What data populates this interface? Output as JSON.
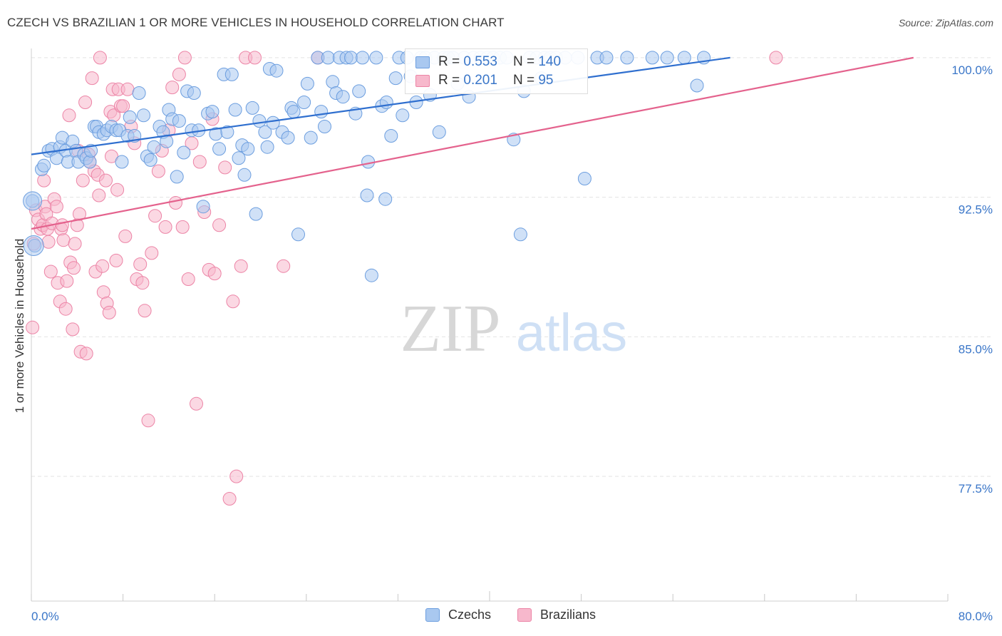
{
  "title": "CZECH VS BRAZILIAN 1 OR MORE VEHICLES IN HOUSEHOLD CORRELATION CHART",
  "source": "Source: ZipAtlas.com",
  "watermark": {
    "zip": "ZIP",
    "atlas": "atlas"
  },
  "legend": {
    "czechs": {
      "r_label": "R =",
      "r_value": "0.553",
      "n_label": "N =",
      "n_value": "140"
    },
    "brazilians": {
      "r_label": "R =",
      "r_value": "0.201",
      "n_label": "N =",
      "n_value": "95"
    }
  },
  "bottom_legend": {
    "czechs": "Czechs",
    "brazilians": "Brazilians"
  },
  "colors": {
    "czech_fill": "#a9c8f0",
    "czech_stroke": "#6c9edf",
    "czech_line": "#2f6fcf",
    "brazil_fill": "#f7b8cc",
    "brazil_stroke": "#ec84a6",
    "brazil_line": "#e4628d",
    "axis_label": "#3a76c8",
    "grid": "#e3e3e3"
  },
  "chart_data": {
    "type": "scatter",
    "title": "CZECH VS BRAZILIAN 1 OR MORE VEHICLES IN HOUSEHOLD CORRELATION CHART",
    "xlabel": "",
    "ylabel": "1 or more Vehicles in Household",
    "xlim": [
      0,
      80
    ],
    "ylim": [
      70.8,
      100.8
    ],
    "x_tick_labels": [
      "0.0%",
      "80.0%"
    ],
    "y_ticks": [
      100.0,
      92.5,
      85.0,
      77.5
    ],
    "y_tick_labels": [
      "100.0%",
      "92.5%",
      "85.0%",
      "77.5%"
    ],
    "grid": true,
    "legend_position": "top-center",
    "series": [
      {
        "name": "Czechs",
        "r": 0.553,
        "n": 140,
        "trend": {
          "x": [
            0,
            61
          ],
          "y": [
            94.8,
            100.0
          ]
        },
        "points": [
          [
            0.1,
            92.3
          ],
          [
            0.3,
            89.9
          ],
          [
            0.9,
            94.0
          ],
          [
            1.1,
            94.2
          ],
          [
            1.5,
            95.0
          ],
          [
            1.8,
            95.1
          ],
          [
            2.2,
            94.6
          ],
          [
            2.5,
            95.2
          ],
          [
            2.7,
            95.7
          ],
          [
            3.0,
            95.0
          ],
          [
            3.2,
            94.4
          ],
          [
            3.6,
            95.5
          ],
          [
            3.9,
            95.0
          ],
          [
            4.1,
            94.4
          ],
          [
            4.6,
            94.8
          ],
          [
            4.8,
            94.6
          ],
          [
            5.1,
            94.4
          ],
          [
            5.2,
            95.0
          ],
          [
            5.5,
            96.3
          ],
          [
            5.7,
            96.3
          ],
          [
            5.9,
            96.0
          ],
          [
            6.3,
            95.9
          ],
          [
            6.6,
            96.1
          ],
          [
            7.0,
            96.3
          ],
          [
            7.4,
            96.1
          ],
          [
            7.7,
            96.1
          ],
          [
            7.9,
            94.4
          ],
          [
            8.4,
            95.8
          ],
          [
            8.6,
            96.8
          ],
          [
            9.0,
            95.8
          ],
          [
            9.4,
            98.1
          ],
          [
            9.8,
            96.9
          ],
          [
            10.1,
            94.7
          ],
          [
            10.4,
            94.5
          ],
          [
            10.7,
            95.2
          ],
          [
            11.2,
            96.3
          ],
          [
            11.5,
            96.0
          ],
          [
            11.8,
            95.5
          ],
          [
            12.0,
            97.2
          ],
          [
            12.3,
            96.7
          ],
          [
            12.7,
            93.6
          ],
          [
            12.9,
            96.6
          ],
          [
            13.3,
            94.9
          ],
          [
            13.6,
            98.2
          ],
          [
            14.0,
            96.1
          ],
          [
            14.2,
            98.1
          ],
          [
            14.6,
            96.1
          ],
          [
            15.0,
            92.0
          ],
          [
            15.4,
            97.0
          ],
          [
            15.8,
            97.1
          ],
          [
            16.1,
            95.9
          ],
          [
            16.4,
            95.1
          ],
          [
            16.8,
            99.1
          ],
          [
            17.1,
            96.0
          ],
          [
            17.5,
            99.1
          ],
          [
            17.8,
            97.2
          ],
          [
            18.1,
            94.6
          ],
          [
            18.4,
            95.3
          ],
          [
            18.6,
            93.7
          ],
          [
            18.9,
            95.1
          ],
          [
            19.3,
            97.3
          ],
          [
            19.6,
            91.6
          ],
          [
            19.9,
            96.6
          ],
          [
            20.4,
            96.0
          ],
          [
            20.6,
            95.2
          ],
          [
            20.8,
            99.4
          ],
          [
            21.1,
            96.5
          ],
          [
            21.4,
            99.3
          ],
          [
            21.9,
            96.0
          ],
          [
            22.4,
            95.7
          ],
          [
            22.7,
            97.3
          ],
          [
            22.9,
            97.1
          ],
          [
            23.3,
            90.5
          ],
          [
            23.8,
            97.6
          ],
          [
            24.1,
            98.6
          ],
          [
            24.4,
            95.7
          ],
          [
            25.0,
            100.0
          ],
          [
            25.3,
            97.1
          ],
          [
            25.6,
            96.3
          ],
          [
            25.9,
            100.0
          ],
          [
            26.3,
            98.7
          ],
          [
            26.6,
            98.1
          ],
          [
            26.9,
            100.0
          ],
          [
            27.2,
            97.9
          ],
          [
            27.5,
            100.0
          ],
          [
            27.9,
            100.0
          ],
          [
            28.3,
            97.0
          ],
          [
            28.6,
            98.2
          ],
          [
            28.9,
            100.0
          ],
          [
            29.3,
            92.6
          ],
          [
            29.4,
            94.4
          ],
          [
            29.7,
            88.3
          ],
          [
            30.1,
            100.0
          ],
          [
            30.6,
            97.4
          ],
          [
            30.9,
            92.4
          ],
          [
            31.0,
            97.6
          ],
          [
            31.4,
            95.8
          ],
          [
            31.8,
            98.9
          ],
          [
            32.1,
            100.0
          ],
          [
            32.4,
            96.9
          ],
          [
            32.8,
            100.0
          ],
          [
            33.1,
            99.0
          ],
          [
            33.6,
            97.6
          ],
          [
            34.0,
            100.0
          ],
          [
            34.4,
            100.0
          ],
          [
            34.8,
            98.0
          ],
          [
            35.2,
            100.0
          ],
          [
            35.6,
            96.0
          ],
          [
            36.0,
            100.0
          ],
          [
            36.4,
            100.0
          ],
          [
            36.8,
            100.0
          ],
          [
            37.2,
            98.6
          ],
          [
            37.8,
            100.0
          ],
          [
            38.2,
            97.9
          ],
          [
            38.6,
            100.0
          ],
          [
            39.2,
            100.0
          ],
          [
            39.8,
            100.0
          ],
          [
            40.3,
            100.0
          ],
          [
            40.9,
            100.0
          ],
          [
            41.5,
            100.0
          ],
          [
            42.1,
            95.6
          ],
          [
            42.7,
            90.5
          ],
          [
            43.0,
            98.2
          ],
          [
            43.5,
            100.0
          ],
          [
            44.1,
            100.0
          ],
          [
            44.5,
            98.9
          ],
          [
            44.8,
            100.0
          ],
          [
            45.3,
            100.0
          ],
          [
            45.8,
            100.0
          ],
          [
            46.6,
            100.0
          ],
          [
            47.7,
            100.0
          ],
          [
            48.3,
            93.5
          ],
          [
            49.4,
            100.0
          ],
          [
            50.2,
            100.0
          ],
          [
            52.0,
            100.0
          ],
          [
            54.2,
            100.0
          ],
          [
            55.5,
            100.0
          ],
          [
            57.0,
            100.0
          ],
          [
            58.1,
            98.5
          ],
          [
            58.7,
            100.0
          ]
        ]
      },
      {
        "name": "Brazilians",
        "r": 0.201,
        "n": 95,
        "trend": {
          "x": [
            0,
            77
          ],
          "y": [
            90.8,
            100.0
          ]
        },
        "points": [
          [
            0.1,
            85.5
          ],
          [
            0.2,
            90.0
          ],
          [
            0.4,
            91.8
          ],
          [
            0.6,
            91.3
          ],
          [
            0.8,
            90.8
          ],
          [
            1.0,
            91.0
          ],
          [
            1.1,
            93.4
          ],
          [
            1.2,
            92.0
          ],
          [
            1.3,
            91.6
          ],
          [
            1.4,
            90.8
          ],
          [
            1.5,
            90.1
          ],
          [
            1.7,
            88.5
          ],
          [
            1.8,
            91.1
          ],
          [
            2.0,
            92.4
          ],
          [
            2.2,
            92.0
          ],
          [
            2.3,
            87.9
          ],
          [
            2.5,
            86.9
          ],
          [
            2.6,
            90.8
          ],
          [
            2.7,
            91.0
          ],
          [
            2.8,
            90.2
          ],
          [
            3.0,
            86.5
          ],
          [
            3.1,
            88.0
          ],
          [
            3.3,
            96.9
          ],
          [
            3.4,
            89.0
          ],
          [
            3.6,
            85.4
          ],
          [
            3.7,
            88.7
          ],
          [
            3.8,
            90.0
          ],
          [
            4.0,
            91.0
          ],
          [
            4.1,
            95.0
          ],
          [
            4.2,
            91.6
          ],
          [
            4.3,
            84.2
          ],
          [
            4.5,
            93.4
          ],
          [
            4.7,
            97.6
          ],
          [
            4.8,
            84.1
          ],
          [
            5.0,
            94.8
          ],
          [
            5.1,
            94.4
          ],
          [
            5.3,
            98.9
          ],
          [
            5.5,
            93.9
          ],
          [
            5.6,
            88.5
          ],
          [
            5.8,
            93.7
          ],
          [
            5.9,
            92.6
          ],
          [
            6.0,
            100.0
          ],
          [
            6.2,
            88.8
          ],
          [
            6.3,
            87.4
          ],
          [
            6.5,
            93.4
          ],
          [
            6.6,
            86.8
          ],
          [
            6.8,
            86.3
          ],
          [
            6.9,
            97.1
          ],
          [
            7.0,
            94.7
          ],
          [
            7.1,
            98.3
          ],
          [
            7.2,
            96.9
          ],
          [
            7.4,
            89.1
          ],
          [
            7.5,
            92.9
          ],
          [
            7.6,
            98.3
          ],
          [
            7.8,
            97.4
          ],
          [
            8.0,
            97.4
          ],
          [
            8.2,
            90.4
          ],
          [
            8.4,
            98.3
          ],
          [
            8.7,
            96.3
          ],
          [
            9.0,
            95.4
          ],
          [
            9.2,
            88.1
          ],
          [
            9.5,
            88.9
          ],
          [
            9.7,
            87.9
          ],
          [
            9.9,
            86.4
          ],
          [
            10.2,
            80.5
          ],
          [
            10.5,
            89.5
          ],
          [
            10.8,
            91.5
          ],
          [
            11.1,
            93.9
          ],
          [
            11.4,
            95.0
          ],
          [
            11.7,
            90.9
          ],
          [
            12.0,
            96.1
          ],
          [
            12.3,
            98.4
          ],
          [
            12.6,
            92.2
          ],
          [
            12.9,
            99.1
          ],
          [
            13.2,
            90.9
          ],
          [
            13.4,
            100.0
          ],
          [
            13.7,
            88.1
          ],
          [
            14.0,
            95.4
          ],
          [
            14.4,
            81.4
          ],
          [
            14.7,
            94.4
          ],
          [
            15.1,
            91.7
          ],
          [
            15.5,
            88.6
          ],
          [
            15.8,
            96.7
          ],
          [
            16.0,
            88.4
          ],
          [
            16.4,
            91.0
          ],
          [
            16.9,
            94.1
          ],
          [
            17.3,
            76.3
          ],
          [
            17.6,
            86.9
          ],
          [
            17.9,
            77.5
          ],
          [
            18.3,
            88.8
          ],
          [
            18.7,
            100.0
          ],
          [
            19.5,
            100.0
          ],
          [
            22.0,
            88.8
          ],
          [
            25.0,
            100.0
          ],
          [
            65.0,
            100.0
          ]
        ]
      }
    ]
  }
}
